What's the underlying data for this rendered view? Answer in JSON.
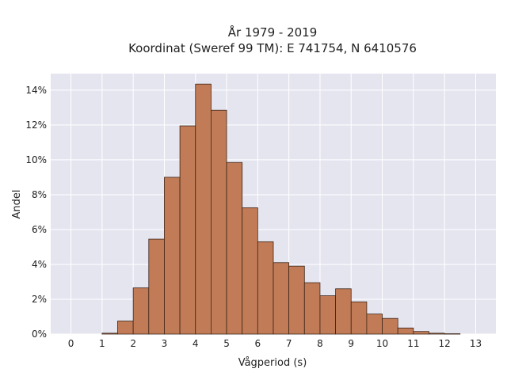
{
  "chart_data": {
    "type": "bar",
    "title": "År 1979 - 2019",
    "subtitle": "Koordinat (Sweref 99 TM): E 741754, N 6410576",
    "xlabel": "Vågperiod (s)",
    "ylabel": "Andel",
    "bin_width": 0.5,
    "bin_edges_start": [
      1.0,
      1.5,
      2.0,
      2.5,
      3.0,
      3.5,
      4.0,
      4.5,
      5.0,
      5.5,
      6.0,
      6.5,
      7.0,
      7.5,
      8.0,
      8.5,
      9.0,
      9.5,
      10.0,
      10.5,
      11.0,
      11.5,
      12.0
    ],
    "values": [
      0.05,
      0.75,
      2.65,
      5.45,
      9.0,
      11.95,
      14.35,
      12.85,
      9.85,
      7.25,
      5.3,
      4.1,
      3.9,
      2.95,
      2.2,
      2.6,
      1.85,
      1.15,
      0.9,
      0.35,
      0.15,
      0.05,
      0.02
    ],
    "xlim": [
      -0.65,
      13.65
    ],
    "ylim": [
      0,
      14.95
    ],
    "x_ticks": [
      0,
      1,
      2,
      3,
      4,
      5,
      6,
      7,
      8,
      9,
      10,
      11,
      12,
      13
    ],
    "x_tick_labels": [
      "0",
      "1",
      "2",
      "3",
      "4",
      "5",
      "6",
      "7",
      "8",
      "9",
      "10",
      "11",
      "12",
      "13"
    ],
    "y_ticks": [
      0,
      2,
      4,
      6,
      8,
      10,
      12,
      14
    ],
    "y_tick_labels": [
      "0%",
      "2%",
      "4%",
      "6%",
      "8%",
      "10%",
      "12%",
      "14%"
    ],
    "grid": true,
    "legend": "none",
    "colors": {
      "bar_fill": "#c17c57",
      "bar_stroke": "#3d2416",
      "plot_background": "#e5e5f0",
      "grid": "#ffffff"
    }
  }
}
